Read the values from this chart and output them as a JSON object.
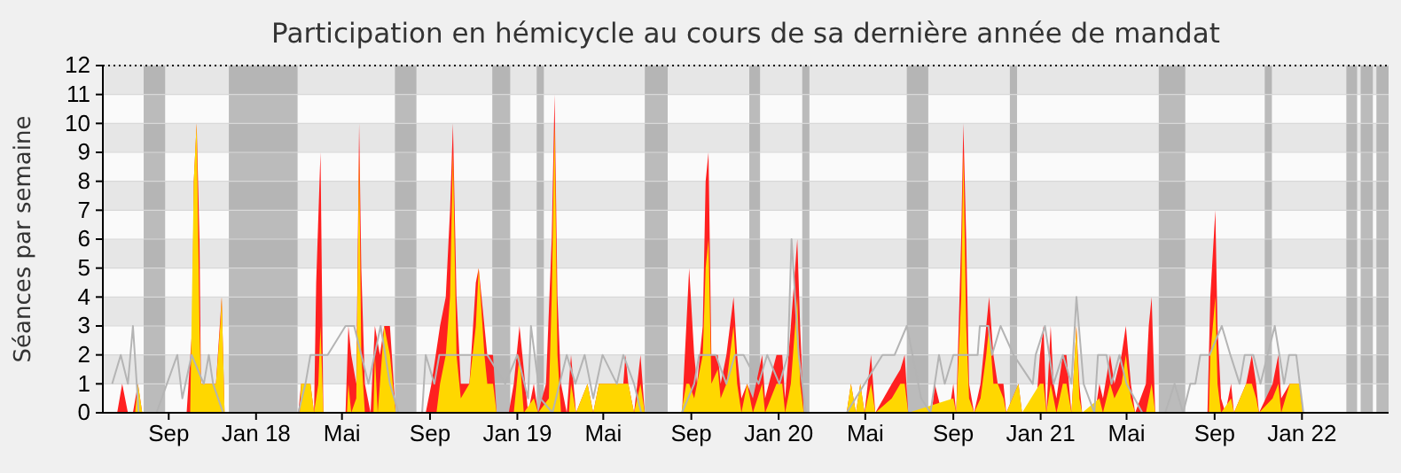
{
  "chart_data": {
    "type": "area",
    "title": "Participation en hémicycle au cours de sa dernière année de mandat",
    "ylabel": "Séances par semaine",
    "xlim": [
      "2017-06-01",
      "2022-05-02"
    ],
    "ylim": [
      0,
      12
    ],
    "yticks": [
      0,
      1,
      2,
      3,
      4,
      5,
      6,
      7,
      8,
      9,
      10,
      11,
      12
    ],
    "xticks": [
      {
        "value": "2017-09-01",
        "label": "Sep"
      },
      {
        "value": "2018-01-01",
        "label": "Jan 18"
      },
      {
        "value": "2018-05-01",
        "label": "Mai"
      },
      {
        "value": "2018-09-01",
        "label": "Sep"
      },
      {
        "value": "2019-01-01",
        "label": "Jan 19"
      },
      {
        "value": "2019-05-01",
        "label": "Mai"
      },
      {
        "value": "2019-09-01",
        "label": "Sep"
      },
      {
        "value": "2020-01-01",
        "label": "Jan 20"
      },
      {
        "value": "2020-05-01",
        "label": "Mai"
      },
      {
        "value": "2020-09-01",
        "label": "Sep"
      },
      {
        "value": "2021-01-01",
        "label": "Jan 21"
      },
      {
        "value": "2021-05-01",
        "label": "Mai"
      },
      {
        "value": "2021-09-01",
        "label": "Sep"
      },
      {
        "value": "2022-01-01",
        "label": "Jan 22"
      }
    ],
    "grid": true,
    "bands": [
      {
        "axis": "x",
        "from": "2017-07-28",
        "to": "2017-08-27",
        "color": "#a0a0a0"
      },
      {
        "axis": "x",
        "from": "2017-11-24",
        "to": "2018-02-28",
        "color": "#a0a0a0"
      },
      {
        "axis": "x",
        "from": "2018-07-14",
        "to": "2018-08-13",
        "color": "#a0a0a0"
      },
      {
        "axis": "x",
        "from": "2018-11-27",
        "to": "2018-12-22",
        "color": "#a0a0a0"
      },
      {
        "axis": "x",
        "from": "2019-01-28",
        "to": "2019-02-07",
        "color": "#a0a0a0"
      },
      {
        "axis": "x",
        "from": "2019-06-28",
        "to": "2019-07-30",
        "color": "#a0a0a0"
      },
      {
        "axis": "x",
        "from": "2019-11-21",
        "to": "2019-12-06",
        "color": "#a0a0a0"
      },
      {
        "axis": "x",
        "from": "2020-02-03",
        "to": "2020-02-13",
        "color": "#a0a0a0"
      },
      {
        "axis": "x",
        "from": "2020-06-28",
        "to": "2020-07-28",
        "color": "#a0a0a0"
      },
      {
        "axis": "x",
        "from": "2020-11-19",
        "to": "2020-11-29",
        "color": "#a0a0a0"
      },
      {
        "axis": "x",
        "from": "2021-06-15",
        "to": "2021-07-22",
        "color": "#a0a0a0"
      },
      {
        "axis": "x",
        "from": "2021-11-10",
        "to": "2021-11-20",
        "color": "#a0a0a0"
      },
      {
        "axis": "x",
        "from": "2022-03-04",
        "to": "2022-03-19",
        "color": "#a0a0a0"
      },
      {
        "axis": "x",
        "from": "2022-03-24",
        "to": "2022-04-10",
        "color": "#a0a0a0"
      },
      {
        "axis": "x",
        "from": "2022-04-15",
        "to": "2022-05-02",
        "color": "#a0a0a0"
      }
    ],
    "series": [
      {
        "type": "line",
        "color": "#b4b4b4",
        "x": [
          "2017-06-14",
          "2017-06-26",
          "2017-07-06",
          "2017-07-13",
          "2017-07-21",
          "2017-08-15",
          "2017-09-13",
          "2017-09-20",
          "2017-10-03",
          "2017-10-20",
          "2017-10-27",
          "2017-11-02",
          "2017-11-16",
          "2018-03-01",
          "2018-03-11",
          "2018-03-18",
          "2018-04-11",
          "2018-05-06",
          "2018-05-18",
          "2018-06-07",
          "2018-06-24",
          "2018-07-07",
          "2018-07-19",
          "2018-08-21",
          "2018-08-26",
          "2018-09-07",
          "2018-09-14",
          "2018-10-26",
          "2018-11-20",
          "2018-12-15",
          "2019-01-01",
          "2019-01-16",
          "2019-01-20",
          "2019-02-02",
          "2019-02-19",
          "2019-03-11",
          "2019-03-23",
          "2019-04-05",
          "2019-04-17",
          "2019-04-30",
          "2019-05-20",
          "2019-05-29",
          "2019-06-13",
          "2019-06-23",
          "2019-08-19",
          "2019-09-05",
          "2019-09-12",
          "2019-10-05",
          "2019-10-20",
          "2019-11-01",
          "2019-11-13",
          "2019-12-04",
          "2019-12-16",
          "2020-01-02",
          "2020-01-14",
          "2020-01-19",
          "2020-01-29",
          "2020-02-08",
          "2020-04-05",
          "2020-05-25",
          "2020-06-11",
          "2020-06-28",
          "2020-07-18",
          "2020-07-31",
          "2020-08-12",
          "2020-08-20",
          "2020-09-01",
          "2020-09-18",
          "2020-10-05",
          "2020-10-08",
          "2020-10-20",
          "2020-10-25",
          "2020-11-06",
          "2020-11-24",
          "2020-12-21",
          "2020-12-25",
          "2021-01-07",
          "2021-01-19",
          "2021-02-01",
          "2021-02-13",
          "2021-02-20",
          "2021-03-02",
          "2021-03-17",
          "2021-03-22",
          "2021-04-03",
          "2021-04-10",
          "2021-04-21",
          "2021-05-01",
          "2021-05-23",
          "2021-06-24",
          "2021-07-07",
          "2021-07-19",
          "2021-07-29",
          "2021-08-05",
          "2021-08-12",
          "2021-08-25",
          "2021-09-11",
          "2021-09-23",
          "2021-10-06",
          "2021-10-13",
          "2021-10-25",
          "2021-11-04",
          "2021-11-24",
          "2021-12-07",
          "2021-12-14",
          "2021-12-24",
          "2022-01-03"
        ],
        "values": [
          1,
          2,
          1,
          3,
          0,
          0,
          2,
          0.5,
          2,
          1,
          2,
          1,
          0,
          0,
          1,
          2,
          2,
          3,
          3,
          1,
          3,
          1,
          0,
          0,
          2,
          1,
          2,
          2,
          2,
          1,
          2,
          0.5,
          3,
          0.5,
          0,
          2,
          1,
          2,
          0.5,
          2,
          1,
          2,
          1,
          0,
          0,
          1,
          2,
          2,
          1,
          2,
          2,
          1,
          2,
          1,
          2,
          6,
          2,
          0,
          0,
          2,
          2,
          3,
          0.5,
          0,
          2,
          1,
          2,
          2,
          2,
          3,
          3,
          2,
          3,
          2,
          1,
          2,
          3,
          1,
          2,
          1,
          4,
          1,
          0,
          2,
          2,
          1,
          2,
          1,
          0,
          0,
          1,
          0,
          1,
          1,
          2,
          2,
          3,
          2,
          1,
          2,
          2,
          1,
          3,
          1,
          2,
          2,
          0
        ]
      },
      {
        "color": "#ff2020",
        "x": [
          "2017-06-01",
          "2017-06-21",
          "2017-06-28",
          "2017-07-06",
          "2017-07-13",
          "2017-07-20",
          "2017-07-26",
          "2017-09-26",
          "2017-10-04",
          "2017-10-06",
          "2017-10-10",
          "2017-10-14",
          "2017-10-16",
          "2017-11-06",
          "2017-11-14",
          "2017-11-18",
          "2018-03-01",
          "2018-03-05",
          "2018-03-18",
          "2018-03-23",
          "2018-03-26",
          "2018-04-01",
          "2018-04-05",
          "2018-05-06",
          "2018-05-10",
          "2018-05-14",
          "2018-05-21",
          "2018-05-25",
          "2018-05-28",
          "2018-06-02",
          "2018-06-10",
          "2018-06-16",
          "2018-06-23",
          "2018-06-29",
          "2018-07-07",
          "2018-07-15",
          "2018-08-26",
          "2018-09-03",
          "2018-09-15",
          "2018-09-23",
          "2018-09-29",
          "2018-10-03",
          "2018-10-08",
          "2018-10-14",
          "2018-10-26",
          "2018-11-04",
          "2018-11-08",
          "2018-11-16",
          "2018-11-20",
          "2018-11-28",
          "2018-12-03",
          "2018-12-20",
          "2018-12-27",
          "2019-01-04",
          "2019-01-08",
          "2019-01-16",
          "2019-01-20",
          "2019-01-24",
          "2019-01-30",
          "2019-02-10",
          "2019-02-18",
          "2019-02-22",
          "2019-02-26",
          "2019-03-03",
          "2019-03-11",
          "2019-03-17",
          "2019-03-24",
          "2019-04-09",
          "2019-04-17",
          "2019-04-25",
          "2019-05-29",
          "2019-06-01",
          "2019-06-05",
          "2019-06-13",
          "2019-06-22",
          "2019-06-28",
          "2019-08-19",
          "2019-08-23",
          "2019-08-29",
          "2019-09-05",
          "2019-09-09",
          "2019-09-17",
          "2019-09-21",
          "2019-09-25",
          "2019-09-29",
          "2019-10-08",
          "2019-10-12",
          "2019-10-20",
          "2019-10-30",
          "2019-11-04",
          "2019-11-10",
          "2019-11-18",
          "2019-11-26",
          "2019-12-09",
          "2019-12-13",
          "2019-12-29",
          "2020-01-06",
          "2020-01-10",
          "2020-01-18",
          "2020-01-27",
          "2020-01-31",
          "2020-02-05",
          "2020-04-05",
          "2020-04-11",
          "2020-04-18",
          "2020-04-24",
          "2020-04-30",
          "2020-05-09",
          "2020-05-15",
          "2020-06-07",
          "2020-06-19",
          "2020-06-25",
          "2020-06-30",
          "2020-08-02",
          "2020-08-06",
          "2020-08-16",
          "2020-08-26",
          "2020-09-01",
          "2020-09-05",
          "2020-09-12",
          "2020-09-15",
          "2020-09-19",
          "2020-09-23",
          "2020-09-30",
          "2020-10-09",
          "2020-10-17",
          "2020-10-21",
          "2020-10-27",
          "2020-11-02",
          "2020-11-10",
          "2020-11-14",
          "2020-12-01",
          "2020-12-06",
          "2020-12-25",
          "2020-12-31",
          "2021-01-05",
          "2021-01-09",
          "2021-01-15",
          "2021-01-19",
          "2021-01-23",
          "2021-02-01",
          "2021-02-06",
          "2021-02-13",
          "2021-02-20",
          "2021-02-24",
          "2021-02-28",
          "2021-03-18",
          "2021-03-24",
          "2021-03-29",
          "2021-04-08",
          "2021-04-14",
          "2021-04-24",
          "2021-04-30",
          "2021-05-07",
          "2021-05-13",
          "2021-05-28",
          "2021-06-01",
          "2021-06-05",
          "2021-06-10",
          "2021-08-22",
          "2021-08-26",
          "2021-09-02",
          "2021-09-05",
          "2021-09-10",
          "2021-09-16",
          "2021-09-24",
          "2021-09-28",
          "2021-10-15",
          "2021-10-23",
          "2021-10-29",
          "2021-11-02",
          "2021-11-21",
          "2021-11-29",
          "2021-12-03",
          "2021-12-15",
          "2021-12-28",
          "2022-01-02",
          "2022-05-02"
        ],
        "values": [
          0,
          0,
          1,
          0,
          0,
          1,
          0,
          0,
          3,
          8,
          10,
          6,
          1,
          1,
          4,
          0,
          0,
          1,
          1,
          0,
          4.5,
          9,
          0,
          0,
          3,
          2,
          1,
          10,
          5,
          1,
          0,
          3,
          2,
          3,
          3,
          0,
          0,
          1,
          3,
          4,
          7,
          10,
          4,
          1,
          1,
          4.5,
          5,
          3,
          2,
          2,
          0,
          0,
          1,
          3,
          2,
          0,
          0.5,
          1,
          0,
          1,
          6,
          11,
          4,
          1,
          0,
          2,
          0,
          1,
          0,
          1,
          1,
          2,
          1,
          0,
          2,
          0,
          0,
          2,
          5,
          2,
          1,
          3,
          8,
          9,
          2,
          2,
          1,
          2,
          4,
          2,
          0.5,
          1,
          0.5,
          2,
          0.5,
          2,
          2,
          0.5,
          3,
          6,
          3,
          0,
          0,
          1,
          0,
          1,
          0,
          2,
          0,
          1,
          1.5,
          2,
          0,
          0,
          1,
          0,
          0,
          1,
          0,
          6,
          10,
          6,
          1,
          0,
          1,
          3,
          4,
          2,
          1,
          1,
          0,
          1,
          0,
          0,
          2,
          3,
          0,
          3,
          1,
          0.5,
          2,
          2,
          0,
          3,
          1,
          0,
          0,
          1,
          0.5,
          2,
          1,
          2,
          3,
          1,
          0,
          1,
          3,
          4,
          0,
          0,
          4,
          7,
          3,
          0.5,
          0,
          1,
          0,
          1,
          2,
          1,
          0,
          1,
          2,
          0.5,
          1,
          1,
          0,
          0
        ]
      },
      {
        "color": "#ffd700",
        "x": [
          "2017-06-01",
          "2017-07-16",
          "2017-07-20",
          "2017-07-26",
          "2017-10-01",
          "2017-10-06",
          "2017-10-10",
          "2017-10-14",
          "2017-10-16",
          "2017-11-06",
          "2017-11-12",
          "2017-11-14",
          "2017-11-18",
          "2018-03-03",
          "2018-03-05",
          "2018-03-18",
          "2018-03-23",
          "2018-03-29",
          "2018-04-01",
          "2018-04-05",
          "2018-05-08",
          "2018-05-10",
          "2018-05-14",
          "2018-05-21",
          "2018-05-25",
          "2018-05-28",
          "2018-06-02",
          "2018-06-14",
          "2018-06-16",
          "2018-06-20",
          "2018-06-29",
          "2018-07-07",
          "2018-07-15",
          "2018-09-10",
          "2018-09-15",
          "2018-09-23",
          "2018-09-29",
          "2018-10-03",
          "2018-10-08",
          "2018-10-14",
          "2018-10-26",
          "2018-11-04",
          "2018-11-08",
          "2018-11-16",
          "2018-11-20",
          "2018-11-28",
          "2018-12-03",
          "2018-12-27",
          "2019-01-04",
          "2019-01-10",
          "2019-01-24",
          "2019-01-30",
          "2019-02-14",
          "2019-02-18",
          "2019-02-22",
          "2019-02-26",
          "2019-03-03",
          "2019-03-14",
          "2019-03-17",
          "2019-03-24",
          "2019-04-09",
          "2019-04-17",
          "2019-04-25",
          "2019-05-29",
          "2019-06-01",
          "2019-06-05",
          "2019-06-13",
          "2019-06-22",
          "2019-06-28",
          "2019-08-18",
          "2019-08-25",
          "2019-08-29",
          "2019-09-05",
          "2019-09-17",
          "2019-09-21",
          "2019-09-25",
          "2019-09-29",
          "2019-10-08",
          "2019-10-12",
          "2019-10-20",
          "2019-10-30",
          "2019-11-04",
          "2019-11-10",
          "2019-11-18",
          "2019-11-26",
          "2019-12-09",
          "2019-12-13",
          "2019-12-29",
          "2020-01-06",
          "2020-01-10",
          "2020-01-18",
          "2020-01-27",
          "2020-01-31",
          "2020-02-05",
          "2020-04-05",
          "2020-04-11",
          "2020-04-18",
          "2020-04-24",
          "2020-04-30",
          "2020-05-09",
          "2020-05-15",
          "2020-06-07",
          "2020-06-19",
          "2020-06-25",
          "2020-06-30",
          "2020-09-01",
          "2020-09-05",
          "2020-09-12",
          "2020-09-15",
          "2020-09-19",
          "2020-09-23",
          "2020-09-30",
          "2020-10-09",
          "2020-10-17",
          "2020-10-21",
          "2020-10-27",
          "2020-11-02",
          "2020-11-10",
          "2020-11-14",
          "2020-12-01",
          "2020-12-06",
          "2020-12-31",
          "2021-01-05",
          "2021-01-09",
          "2021-01-15",
          "2021-01-23",
          "2021-02-01",
          "2021-02-06",
          "2021-02-13",
          "2021-02-20",
          "2021-02-24",
          "2021-02-28",
          "2021-03-24",
          "2021-03-29",
          "2021-04-08",
          "2021-04-14",
          "2021-04-24",
          "2021-04-30",
          "2021-05-07",
          "2021-05-13",
          "2021-05-28",
          "2021-06-01",
          "2021-06-05",
          "2021-06-10",
          "2021-08-24",
          "2021-08-26",
          "2021-09-02",
          "2021-09-05",
          "2021-09-10",
          "2021-09-24",
          "2021-09-28",
          "2021-10-15",
          "2021-10-23",
          "2021-10-29",
          "2021-11-02",
          "2021-11-21",
          "2021-11-29",
          "2021-12-03",
          "2021-12-15",
          "2021-12-28",
          "2022-01-02",
          "2022-05-02"
        ],
        "values": [
          0,
          0,
          1,
          0,
          0,
          8,
          10,
          3,
          1,
          1,
          3,
          4,
          0,
          0,
          1,
          1,
          0,
          1,
          3,
          0,
          0,
          1,
          0,
          0.5,
          9,
          2,
          0,
          0,
          2,
          0,
          3,
          2,
          0,
          0,
          1,
          2,
          4,
          9,
          2,
          0.5,
          1,
          3,
          5,
          2,
          1,
          1,
          0,
          0,
          2,
          0,
          0.5,
          0,
          0.5,
          4,
          10,
          2,
          0,
          0,
          1,
          0,
          1,
          0,
          1,
          1,
          1,
          1,
          0,
          1,
          0,
          0,
          1,
          1,
          0.5,
          2,
          5,
          6,
          1,
          1.5,
          0.5,
          1,
          3,
          1,
          0,
          1,
          0,
          1,
          0,
          1,
          1,
          0,
          1,
          4,
          1,
          0,
          0,
          1,
          0,
          1,
          0,
          1,
          0,
          0.5,
          1,
          1,
          0,
          0.5,
          0,
          4,
          9,
          3,
          0.5,
          0,
          0.5,
          2,
          3,
          1,
          1,
          0.5,
          0,
          1,
          0,
          1,
          1,
          0,
          1,
          0,
          1,
          1,
          0,
          3,
          0.5,
          0,
          0.5,
          0,
          1,
          0.5,
          1,
          2,
          0.5,
          0,
          0,
          0.5,
          1,
          0,
          0,
          2,
          4,
          1,
          0,
          0.5,
          0,
          1,
          1,
          0.5,
          0,
          0.5,
          1,
          0,
          1,
          1,
          0,
          0
        ]
      }
    ]
  }
}
